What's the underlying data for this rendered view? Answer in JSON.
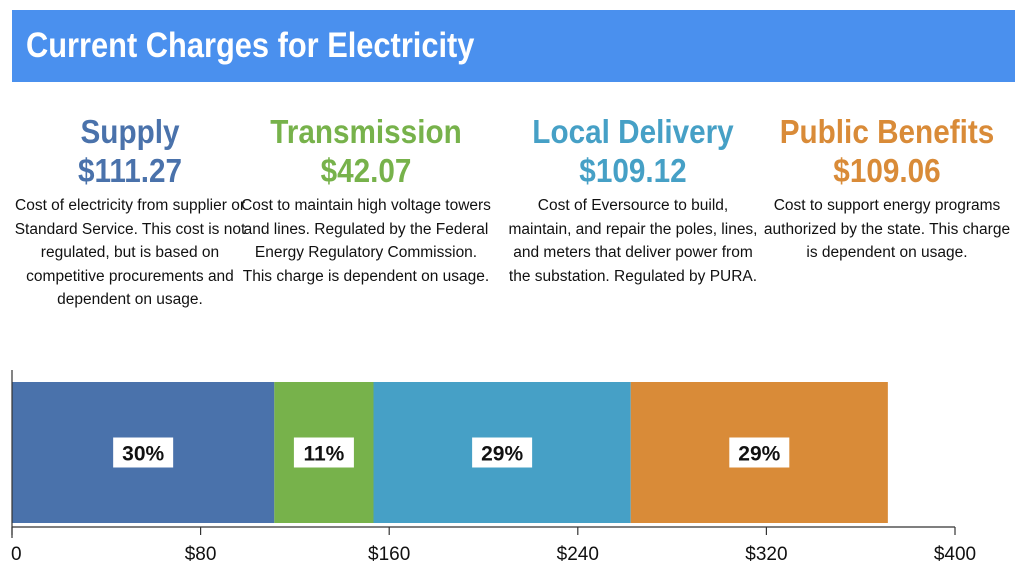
{
  "header": {
    "title": "Current Charges for Electricity"
  },
  "charges": [
    {
      "name": "Supply",
      "amount": "$111.27",
      "color": "#4a72ab",
      "description": "Cost of electricity from supplier or Standard Service. This cost is not regulated, but is based on competitive procurements and dependent on usage."
    },
    {
      "name": "Transmission",
      "amount": "$42.07",
      "color": "#77b24b",
      "description": "Cost to maintain high voltage towers and lines. Regulated by the Federal Energy Regulatory Commission. This charge is dependent on usage."
    },
    {
      "name": "Local Delivery",
      "amount": "$109.12",
      "color": "#46a0c6",
      "description": "Cost of Eversource to build, maintain, and repair the poles, lines, and meters that deliver power from the substation. Regulated by PURA."
    },
    {
      "name": "Public Benefits",
      "amount": "$109.06",
      "color": "#d98b38",
      "description": "Cost to support energy programs authorized by the state. This charge is dependent on usage."
    }
  ],
  "chart_data": {
    "type": "bar",
    "orientation": "horizontal-stacked",
    "series": [
      {
        "name": "Supply",
        "value": 111.27,
        "label": "30%",
        "color": "#4a72ab"
      },
      {
        "name": "Transmission",
        "value": 42.07,
        "label": "11%",
        "color": "#77b24b"
      },
      {
        "name": "Local Delivery",
        "value": 109.12,
        "label": "29%",
        "color": "#46a0c6"
      },
      {
        "name": "Public Benefits",
        "value": 109.06,
        "label": "29%",
        "color": "#d98b38"
      }
    ],
    "xlim": [
      0,
      400
    ],
    "xticks": [
      0,
      80,
      160,
      240,
      320,
      400
    ],
    "xtick_labels": [
      "0",
      "$80",
      "$160",
      "$240",
      "$320",
      "$400"
    ],
    "grid": false,
    "legend": "none"
  }
}
